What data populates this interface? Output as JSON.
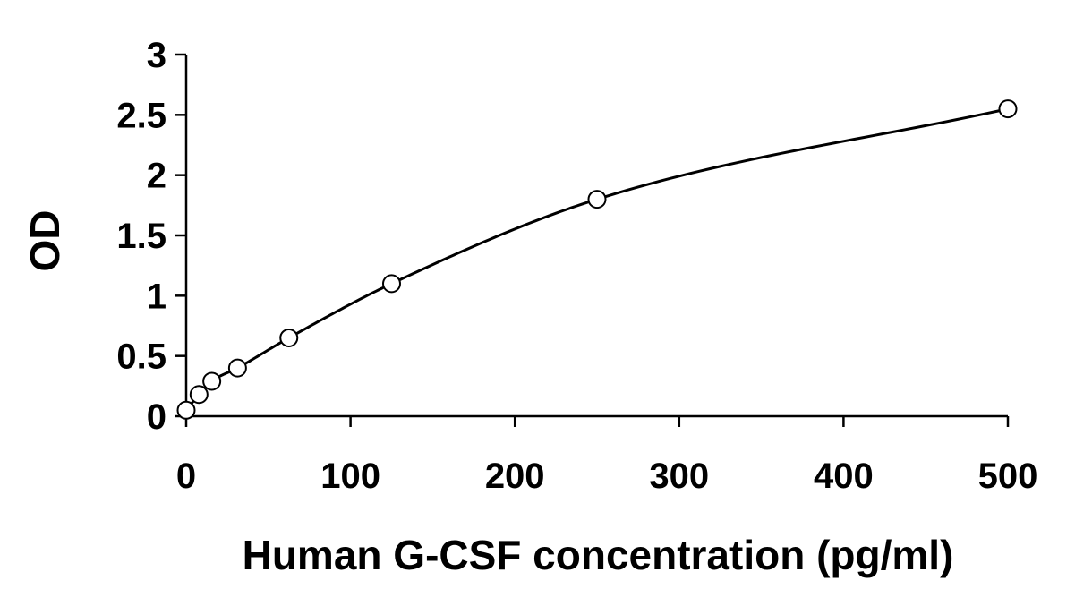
{
  "chart_data": {
    "type": "scatter",
    "title": "",
    "xlabel": "Human G-CSF concentration (pg/ml)",
    "ylabel": "OD",
    "xlim": [
      0,
      500
    ],
    "ylim": [
      0,
      3
    ],
    "x_ticks": [
      "0",
      "100",
      "200",
      "300",
      "400",
      "500"
    ],
    "y_ticks": [
      "0",
      "0.5",
      "1",
      "1.5",
      "2",
      "2.5",
      "3"
    ],
    "grid": false,
    "legend": "none",
    "fit_curve": "smooth",
    "series": [
      {
        "x": [
          0,
          7.8,
          15.6,
          31.25,
          62.5,
          125,
          250,
          500
        ],
        "y": [
          0.05,
          0.18,
          0.29,
          0.4,
          0.65,
          1.1,
          1.8,
          2.55
        ]
      }
    ],
    "colors": {
      "axis": "#000000",
      "marker": "#000000",
      "curve": "#000000"
    }
  }
}
